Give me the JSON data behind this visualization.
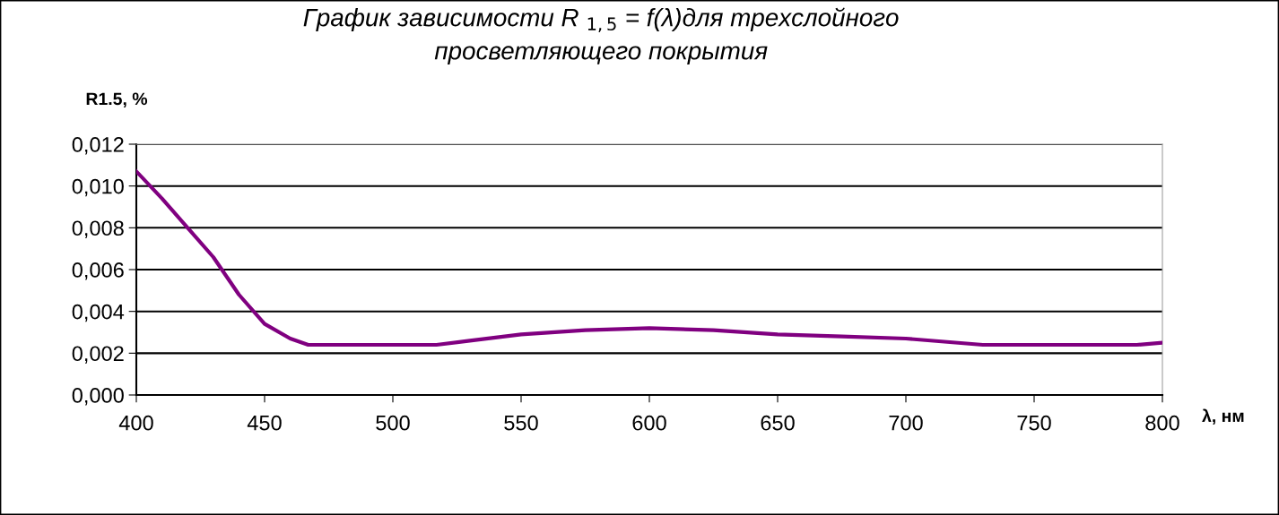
{
  "chart_data": {
    "type": "line",
    "title": "График зависимости R $_{1,5}$ = f(λ)для трехслойного\nпросветляющего покрытия",
    "ylabel": "R1.5, %",
    "xlabel": "λ, нм",
    "x": [
      400,
      410,
      420,
      430,
      440,
      450,
      460,
      467,
      480,
      500,
      517,
      530,
      550,
      575,
      600,
      625,
      650,
      675,
      700,
      730,
      760,
      790,
      800
    ],
    "series": [
      {
        "color": "#800080",
        "values": [
          0.0107,
          0.0094,
          0.008,
          0.0066,
          0.0048,
          0.0034,
          0.0027,
          0.0024,
          0.0024,
          0.0024,
          0.0024,
          0.0026,
          0.0029,
          0.0031,
          0.0032,
          0.0031,
          0.0029,
          0.0028,
          0.0027,
          0.0024,
          0.0024,
          0.0024,
          0.0025
        ]
      }
    ],
    "xlim": [
      400,
      800
    ],
    "xticks": [
      400,
      450,
      500,
      550,
      600,
      650,
      700,
      750,
      800
    ],
    "ylim": [
      0,
      0.012
    ],
    "yticks": [
      {
        "value": 0,
        "label": "0,000"
      },
      {
        "value": 0.002,
        "label": "0,002"
      },
      {
        "value": 0.004,
        "label": "0,004"
      },
      {
        "value": 0.006,
        "label": "0,006"
      },
      {
        "value": 0.008,
        "label": "0,008"
      },
      {
        "value": 0.01,
        "label": "0,010"
      },
      {
        "value": 0.012,
        "label": "0,012"
      }
    ],
    "grid": "y",
    "legend": false,
    "marker": "none",
    "line_style": "solid"
  }
}
